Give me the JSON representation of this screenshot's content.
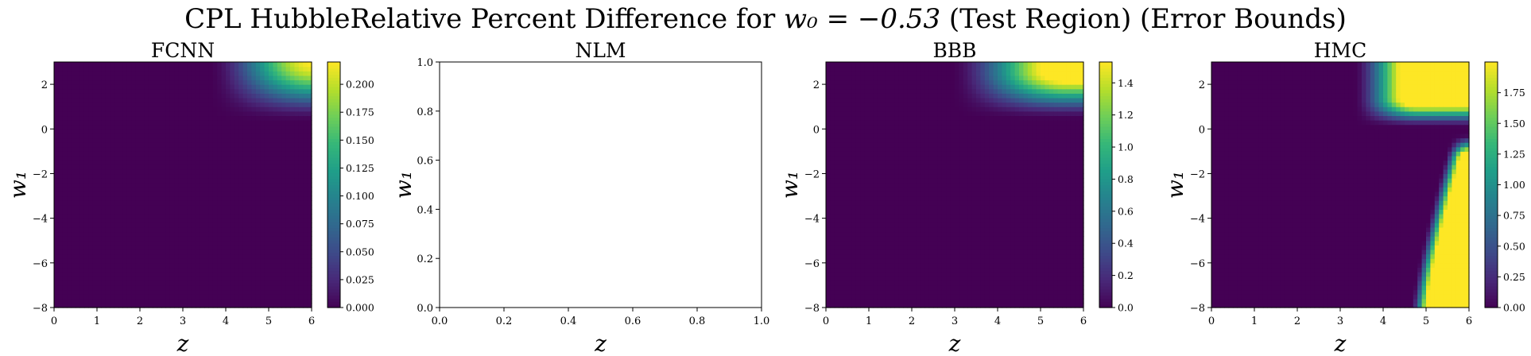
{
  "figure": {
    "title_prefix": "CPL HubbleRelative Percent Difference for ",
    "title_math": "w₀ = −0.53",
    "title_suffix": " (Test Region) (Error Bounds)"
  },
  "colors": {
    "viridis": [
      "#440154",
      "#482878",
      "#3e4989",
      "#31688e",
      "#26828e",
      "#1f9e89",
      "#35b779",
      "#6ece58",
      "#b5de2b",
      "#fde725"
    ]
  },
  "chart_data": [
    {
      "type": "heatmap",
      "title": "FCNN",
      "xlabel": "z",
      "ylabel": "w₁",
      "xlim": [
        0,
        6
      ],
      "ylim": [
        -8,
        3
      ],
      "xticks": [
        "0",
        "1",
        "2",
        "3",
        "4",
        "5",
        "6"
      ],
      "yticks": [
        "−8",
        "−6",
        "−4",
        "−2",
        "0",
        "2"
      ],
      "colorbar": {
        "min": 0,
        "max": 0.22,
        "ticks": [
          "0.000",
          "0.025",
          "0.050",
          "0.075",
          "0.100",
          "0.125",
          "0.150",
          "0.175",
          "0.200"
        ]
      },
      "description_values": {
        "max_value_region": "top-right",
        "peak": 0.215
      }
    },
    {
      "type": "empty",
      "title": "NLM",
      "xlabel": "z",
      "ylabel": "w₁",
      "xlim": [
        0,
        1
      ],
      "ylim": [
        0,
        1
      ],
      "xticks": [
        "0.0",
        "0.2",
        "0.4",
        "0.6",
        "0.8",
        "1.0"
      ],
      "yticks": [
        "0.0",
        "0.2",
        "0.4",
        "0.6",
        "0.8",
        "1.0"
      ]
    },
    {
      "type": "heatmap",
      "title": "BBB",
      "xlabel": "z",
      "ylabel": "w₁",
      "xlim": [
        0,
        6
      ],
      "ylim": [
        -8,
        3
      ],
      "xticks": [
        "0",
        "1",
        "2",
        "3",
        "4",
        "5",
        "6"
      ],
      "yticks": [
        "−8",
        "−6",
        "−4",
        "−2",
        "0",
        "2"
      ],
      "colorbar": {
        "min": 0,
        "max": 1.53,
        "ticks": [
          "0.0",
          "0.2",
          "0.4",
          "0.6",
          "0.8",
          "1.0",
          "1.2",
          "1.4"
        ]
      },
      "description_values": {
        "max_value_region": "top-right",
        "peak": 1.53
      }
    },
    {
      "type": "heatmap",
      "title": "HMC",
      "xlabel": "z",
      "ylabel": "w₁",
      "xlim": [
        0,
        6
      ],
      "ylim": [
        -8,
        3
      ],
      "xticks": [
        "0",
        "1",
        "2",
        "3",
        "4",
        "5",
        "6"
      ],
      "yticks": [
        "−8",
        "−6",
        "−4",
        "−2",
        "0",
        "2"
      ],
      "colorbar": {
        "min": 0,
        "max": 2.0,
        "ticks": [
          "0.00",
          "0.25",
          "0.50",
          "0.75",
          "1.00",
          "1.25",
          "1.50",
          "1.75"
        ]
      },
      "description_values": {
        "max_value_regions": [
          "top-right",
          "bottom-right"
        ],
        "peak": 2.0
      }
    }
  ]
}
